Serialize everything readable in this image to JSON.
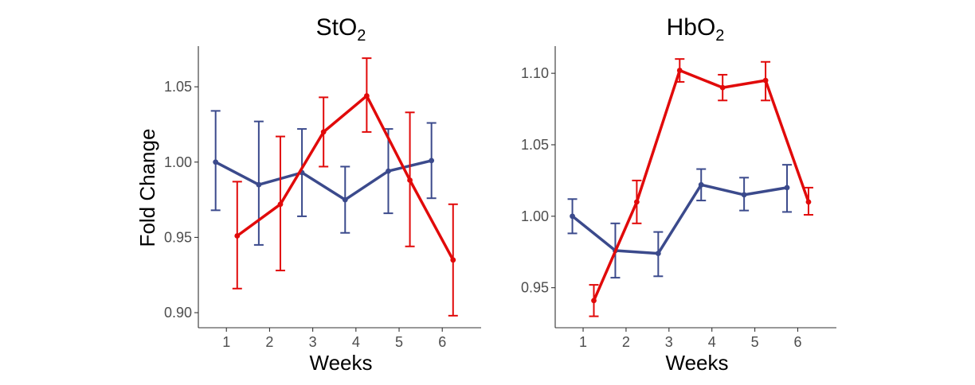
{
  "figure": {
    "ylabel_shared": "Fold Change"
  },
  "series_colors": {
    "blue": "#3B4A8C",
    "red": "#E10A0A"
  },
  "chart_data": [
    {
      "type": "line",
      "title_main": "StO",
      "title_sub": "2",
      "xlabel": "Weeks",
      "ylabel": "Fold Change",
      "xlim": [
        0.35,
        6.9
      ],
      "ylim": [
        0.89,
        1.077
      ],
      "x_ticks": [
        1,
        2,
        3,
        4,
        5,
        6
      ],
      "x_tick_labels": [
        "1",
        "2",
        "3",
        "4",
        "5",
        "6"
      ],
      "y_ticks": [
        0.9,
        0.95,
        1.0,
        1.05
      ],
      "y_tick_labels": [
        "0.90",
        "0.95",
        "1.00",
        "1.05"
      ],
      "series": [
        {
          "name": "blue",
          "color": "#3B4A8C",
          "x": [
            0.75,
            1.75,
            2.75,
            3.75,
            4.75,
            5.75
          ],
          "values": [
            1.0,
            0.985,
            0.993,
            0.975,
            0.994,
            1.001
          ],
          "err_low": [
            0.968,
            0.945,
            0.964,
            0.953,
            0.966,
            0.976
          ],
          "err_high": [
            1.034,
            1.027,
            1.022,
            0.997,
            1.022,
            1.026
          ]
        },
        {
          "name": "red",
          "color": "#E10A0A",
          "x": [
            1.25,
            2.25,
            3.25,
            4.25,
            5.25,
            6.25
          ],
          "values": [
            0.951,
            0.972,
            1.02,
            1.044,
            0.988,
            0.935
          ],
          "err_low": [
            0.916,
            0.928,
            0.997,
            1.02,
            0.944,
            0.898
          ],
          "err_high": [
            0.987,
            1.017,
            1.043,
            1.069,
            1.033,
            0.972
          ]
        }
      ]
    },
    {
      "type": "line",
      "title_main": "HbO",
      "title_sub": "2",
      "xlabel": "Weeks",
      "ylabel": "",
      "xlim": [
        0.35,
        6.9
      ],
      "ylim": [
        0.922,
        1.119
      ],
      "x_ticks": [
        1,
        2,
        3,
        4,
        5,
        6
      ],
      "x_tick_labels": [
        "1",
        "2",
        "3",
        "4",
        "5",
        "6"
      ],
      "y_ticks": [
        0.95,
        1.0,
        1.05,
        1.1
      ],
      "y_tick_labels": [
        "0.95",
        "1.00",
        "1.05",
        "1.10"
      ],
      "series": [
        {
          "name": "blue",
          "color": "#3B4A8C",
          "x": [
            0.75,
            1.75,
            2.75,
            3.75,
            4.75,
            5.75
          ],
          "values": [
            1.0,
            0.976,
            0.974,
            1.022,
            1.015,
            1.02
          ],
          "err_low": [
            0.988,
            0.957,
            0.958,
            1.011,
            1.004,
            1.003
          ],
          "err_high": [
            1.012,
            0.995,
            0.989,
            1.033,
            1.027,
            1.036
          ]
        },
        {
          "name": "red",
          "color": "#E10A0A",
          "x": [
            1.25,
            2.25,
            3.25,
            4.25,
            5.25,
            6.25
          ],
          "values": [
            0.941,
            1.01,
            1.102,
            1.09,
            1.095,
            1.01
          ],
          "err_low": [
            0.93,
            0.995,
            1.094,
            1.081,
            1.081,
            1.001
          ],
          "err_high": [
            0.952,
            1.025,
            1.11,
            1.099,
            1.108,
            1.02
          ]
        }
      ]
    }
  ]
}
